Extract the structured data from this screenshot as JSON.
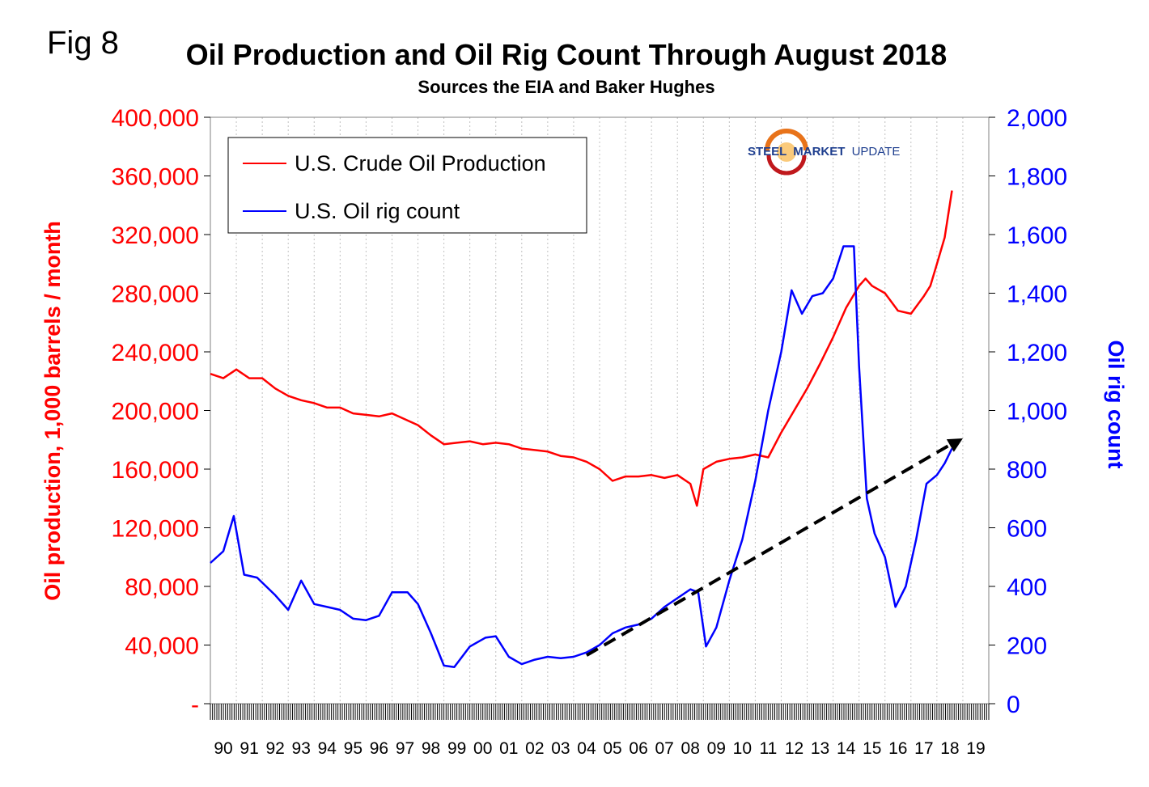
{
  "figure_label": "Fig 8",
  "colors": {
    "production": "#ff0000",
    "rigs": "#0000ff",
    "trend": "#000000",
    "grid": "#c0c0c0"
  },
  "logo": {
    "text_steel": "STEEL",
    "text_market": "MARKET",
    "text_update": "UPDATE",
    "icon": "swirl-logo-icon"
  },
  "chart_data": {
    "type": "line",
    "title": "Oil Production and Oil Rig Count Through August 2018",
    "subtitle": "Sources the EIA and Baker Hughes",
    "ylabel_left": "Oil production, 1,000 barrels / month",
    "ylabel_right": "Oil rig count",
    "ylim_left": [
      0,
      400000
    ],
    "ylim_right": [
      0,
      2000
    ],
    "yticks_left": [
      "400,000",
      "360,000",
      "320,000",
      "280,000",
      "240,000",
      "200,000",
      "160,000",
      "120,000",
      "80,000",
      "40,000",
      "-"
    ],
    "yticks_right": [
      "2,000",
      "1,800",
      "1,600",
      "1,400",
      "1,200",
      "1,000",
      "800",
      "600",
      "400",
      "200",
      "0"
    ],
    "categories": [
      "90",
      "91",
      "92",
      "93",
      "94",
      "95",
      "96",
      "97",
      "98",
      "99",
      "00",
      "01",
      "02",
      "03",
      "04",
      "05",
      "06",
      "07",
      "08",
      "09",
      "10",
      "11",
      "12",
      "13",
      "14",
      "15",
      "16",
      "17",
      "18",
      "19"
    ],
    "grid": "vertical",
    "legend_position": "top-left",
    "series": [
      {
        "name": "U.S. Crude Oil Production",
        "axis": "left",
        "x": [
          1990.0,
          1990.5,
          1991.0,
          1991.5,
          1992.0,
          1992.5,
          1993.0,
          1993.5,
          1994.0,
          1994.5,
          1995.0,
          1995.5,
          1996.0,
          1996.5,
          1997.0,
          1997.5,
          1998.0,
          1998.5,
          1999.0,
          1999.5,
          2000.0,
          2000.5,
          2001.0,
          2001.5,
          2002.0,
          2002.5,
          2003.0,
          2003.5,
          2004.0,
          2004.5,
          2005.0,
          2005.5,
          2006.0,
          2006.5,
          2007.0,
          2007.5,
          2008.0,
          2008.5,
          2008.75,
          2009.0,
          2009.5,
          2010.0,
          2010.5,
          2011.0,
          2011.5,
          2012.0,
          2012.5,
          2013.0,
          2013.5,
          2014.0,
          2014.5,
          2015.0,
          2015.25,
          2015.5,
          2016.0,
          2016.5,
          2017.0,
          2017.5,
          2017.75,
          2018.0,
          2018.3,
          2018.58
        ],
        "values": [
          225000,
          222000,
          228000,
          222000,
          222000,
          215000,
          210000,
          207000,
          205000,
          202000,
          202000,
          198000,
          197000,
          196000,
          198000,
          194000,
          190000,
          183000,
          177000,
          178000,
          179000,
          177000,
          178000,
          177000,
          174000,
          173000,
          172000,
          169000,
          168000,
          165000,
          160000,
          152000,
          155000,
          155000,
          156000,
          154000,
          156000,
          150000,
          135000,
          160000,
          165000,
          167000,
          168000,
          170000,
          168000,
          185000,
          200000,
          215000,
          232000,
          250000,
          270000,
          285000,
          290000,
          285000,
          280000,
          268000,
          266000,
          278000,
          285000,
          300000,
          318000,
          350000
        ]
      },
      {
        "name": "U.S. Oil rig count",
        "axis": "right",
        "x": [
          1990.0,
          1990.5,
          1990.9,
          1991.3,
          1991.8,
          1992.5,
          1993.0,
          1993.5,
          1994.0,
          1994.5,
          1995.0,
          1995.5,
          1996.0,
          1996.5,
          1997.0,
          1997.6,
          1998.0,
          1998.5,
          1999.0,
          1999.4,
          2000.0,
          2000.6,
          2001.0,
          2001.5,
          2002.0,
          2002.5,
          2003.0,
          2003.5,
          2004.0,
          2004.5,
          2005.0,
          2005.5,
          2006.0,
          2006.5,
          2007.0,
          2007.5,
          2008.0,
          2008.5,
          2008.8,
          2009.1,
          2009.5,
          2010.0,
          2010.5,
          2011.0,
          2011.5,
          2012.0,
          2012.4,
          2012.8,
          2013.2,
          2013.6,
          2014.0,
          2014.4,
          2014.8,
          2015.0,
          2015.3,
          2015.6,
          2016.0,
          2016.4,
          2016.8,
          2017.2,
          2017.6,
          2018.0,
          2018.3,
          2018.58
        ],
        "values": [
          480,
          520,
          640,
          440,
          430,
          370,
          320,
          420,
          340,
          330,
          320,
          290,
          285,
          300,
          380,
          380,
          340,
          240,
          130,
          125,
          195,
          225,
          230,
          160,
          135,
          150,
          160,
          155,
          160,
          175,
          200,
          240,
          260,
          270,
          290,
          330,
          360,
          390,
          380,
          195,
          260,
          420,
          560,
          760,
          1000,
          1200,
          1410,
          1330,
          1390,
          1400,
          1450,
          1560,
          1560,
          1150,
          700,
          580,
          500,
          330,
          400,
          560,
          750,
          780,
          820,
          870
        ]
      }
    ],
    "trend_line": {
      "x": [
        2004.5,
        2019.0
      ],
      "values_right": [
        165,
        905
      ]
    }
  }
}
